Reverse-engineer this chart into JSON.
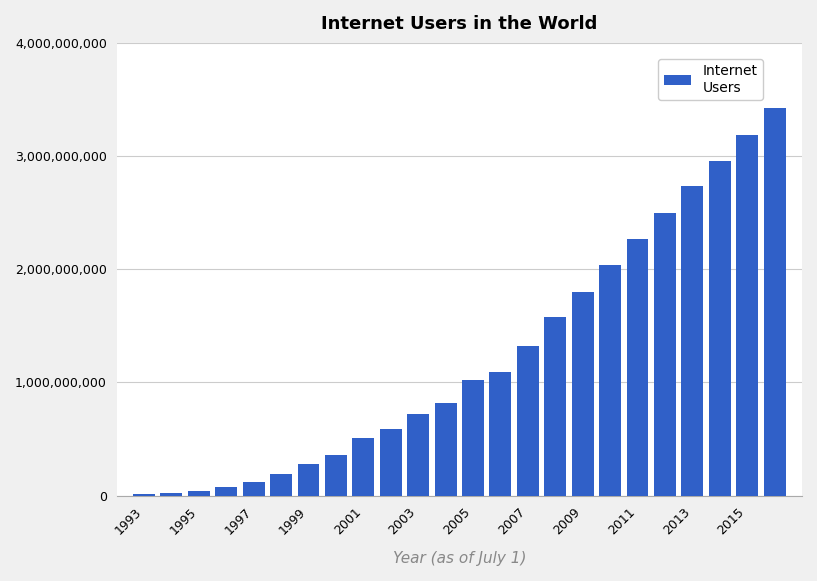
{
  "title": "Internet Users in the World",
  "xlabel": "Year (as of July 1)",
  "ylabel": "",
  "legend_label": "Internet\nUsers",
  "bar_color": "#3060c8",
  "background_color": "#f5f5f5",
  "figure_facecolor": "#f0f0f0",
  "years": [
    1993,
    1994,
    1995,
    1996,
    1997,
    1998,
    1999,
    2000,
    2001,
    2002,
    2003,
    2004,
    2005,
    2006,
    2007,
    2008,
    2009,
    2010,
    2011,
    2012,
    2013,
    2014,
    2015,
    2016
  ],
  "values": [
    14000000,
    25000000,
    45000000,
    77000000,
    120000000,
    188000000,
    280000000,
    361000000,
    513000000,
    587000000,
    719000000,
    817000000,
    1018000000,
    1093000000,
    1319000000,
    1574000000,
    1802000000,
    2034000000,
    2267000000,
    2497000000,
    2738000000,
    2956000000,
    3185000000,
    3424971237
  ],
  "ylim": [
    0,
    4000000000
  ],
  "yticks": [
    0,
    1000000000,
    2000000000,
    3000000000,
    4000000000
  ],
  "xtick_years": [
    1993,
    1995,
    1997,
    1999,
    2001,
    2003,
    2005,
    2007,
    2009,
    2011,
    2013,
    2015
  ],
  "title_fontsize": 13,
  "tick_fontsize": 9,
  "xlabel_fontsize": 11,
  "legend_fontsize": 10
}
